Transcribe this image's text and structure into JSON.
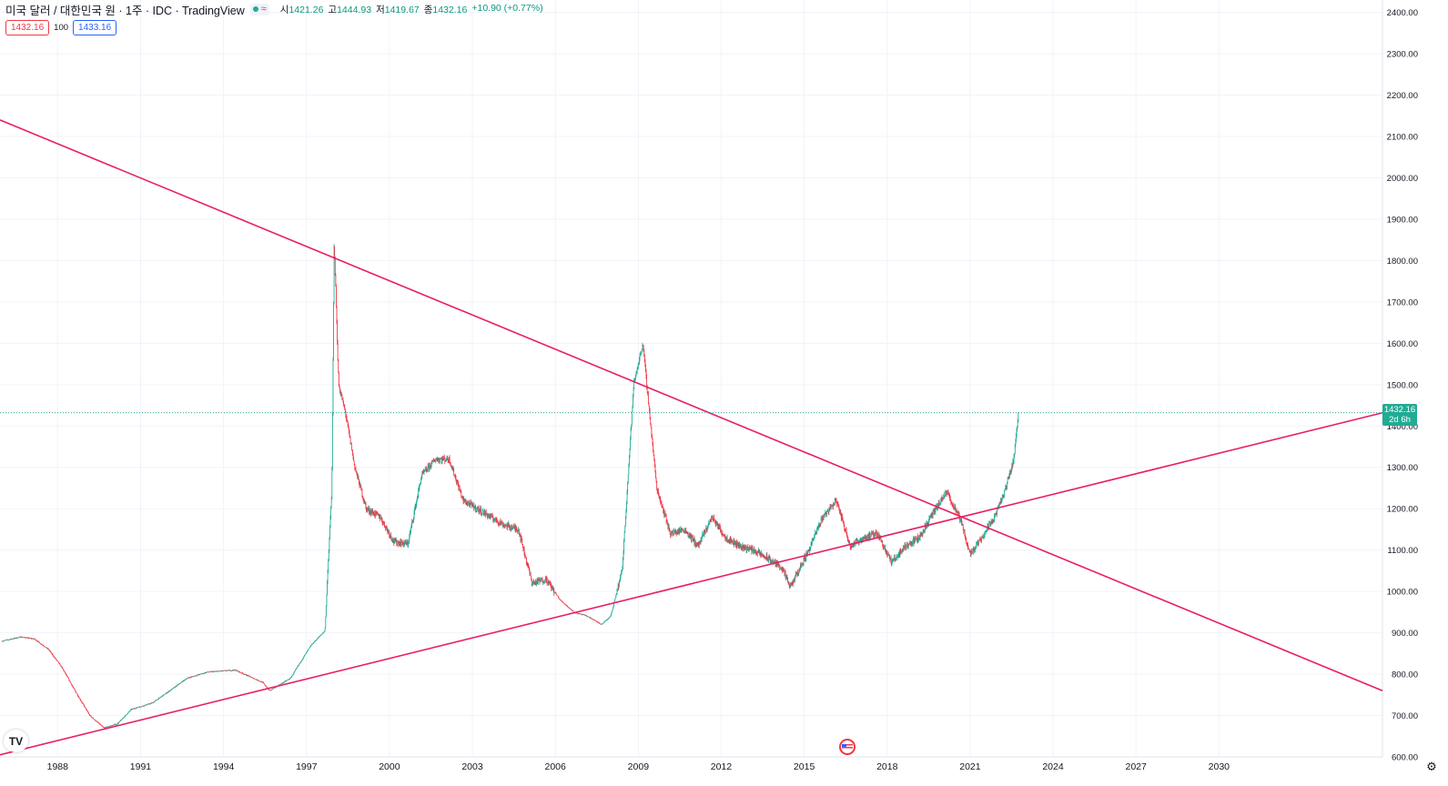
{
  "header": {
    "symbol_title": "미국 달러 / 대한민국 원 · 1주 · IDC · TradingView",
    "status_icon": "approx-wave-icon",
    "ohlc": [
      {
        "label": "시",
        "value": "1421.26"
      },
      {
        "label": "고",
        "value": "1444.93"
      },
      {
        "label": "저",
        "value": "1419.67"
      },
      {
        "label": "종",
        "value": "1432.16"
      },
      {
        "label": "",
        "value": "+10.90 (+0.77%)"
      }
    ],
    "bid": "1432.16",
    "spread": "100",
    "ask": "1433.16"
  },
  "price_tag": {
    "price": "1432.16",
    "countdown": "2d 6h"
  },
  "colors": {
    "up": "#22ab94",
    "down": "#f23645",
    "trendline": "#e91e63",
    "grid": "#f0f3fa",
    "axis_text": "#131722"
  },
  "chart_data": {
    "type": "candlestick",
    "x_axis_type": "date",
    "xlim": [
      "1985-12-01",
      "2035-12-01"
    ],
    "ylim": [
      600,
      2430
    ],
    "x_tick_labels": [
      "1988",
      "1991",
      "1994",
      "1997",
      "2000",
      "2003",
      "2006",
      "2009",
      "2012",
      "2015",
      "2018",
      "2021",
      "2024",
      "2027",
      "2030"
    ],
    "y_tick_labels": [
      "600.00",
      "700.00",
      "800.00",
      "900.00",
      "1000.00",
      "1100.00",
      "1200.00",
      "1300.00",
      "1400.00",
      "1500.00",
      "1600.00",
      "1700.00",
      "1800.00",
      "1900.00",
      "2000.00",
      "2100.00",
      "2200.00",
      "2300.00",
      "2400.00"
    ],
    "last_price": 1432.16,
    "grid": true,
    "price_path": [
      [
        "1986-01-01",
        880
      ],
      [
        "1986-09-01",
        890
      ],
      [
        "1987-03-01",
        885
      ],
      [
        "1987-09-01",
        860
      ],
      [
        "1988-03-01",
        815
      ],
      [
        "1988-09-01",
        755
      ],
      [
        "1989-03-01",
        700
      ],
      [
        "1989-09-01",
        670
      ],
      [
        "1990-03-01",
        680
      ],
      [
        "1990-09-01",
        715
      ],
      [
        "1991-06-01",
        730
      ],
      [
        "1992-03-01",
        765
      ],
      [
        "1992-09-01",
        790
      ],
      [
        "1993-06-01",
        805
      ],
      [
        "1994-06-01",
        810
      ],
      [
        "1995-06-01",
        780
      ],
      [
        "1995-09-01",
        760
      ],
      [
        "1996-06-01",
        790
      ],
      [
        "1997-03-01",
        870
      ],
      [
        "1997-09-01",
        905
      ],
      [
        "1997-12-01",
        1250
      ],
      [
        "1998-01-01",
        1850
      ],
      [
        "1998-03-01",
        1500
      ],
      [
        "1998-06-01",
        1430
      ],
      [
        "1998-10-01",
        1300
      ],
      [
        "1999-03-01",
        1200
      ],
      [
        "1999-09-01",
        1180
      ],
      [
        "2000-03-01",
        1120
      ],
      [
        "2000-09-01",
        1115
      ],
      [
        "2001-03-01",
        1280
      ],
      [
        "2001-09-01",
        1320
      ],
      [
        "2002-03-01",
        1320
      ],
      [
        "2002-09-01",
        1220
      ],
      [
        "2003-03-01",
        1200
      ],
      [
        "2003-09-01",
        1180
      ],
      [
        "2004-03-01",
        1160
      ],
      [
        "2004-09-01",
        1150
      ],
      [
        "2005-03-01",
        1020
      ],
      [
        "2005-09-01",
        1030
      ],
      [
        "2006-03-01",
        980
      ],
      [
        "2006-09-01",
        950
      ],
      [
        "2007-03-01",
        940
      ],
      [
        "2007-09-01",
        920
      ],
      [
        "2008-01-01",
        940
      ],
      [
        "2008-06-01",
        1050
      ],
      [
        "2008-11-01",
        1500
      ],
      [
        "2009-03-01",
        1600
      ],
      [
        "2009-09-01",
        1250
      ],
      [
        "2010-03-01",
        1140
      ],
      [
        "2010-09-01",
        1150
      ],
      [
        "2011-03-01",
        1110
      ],
      [
        "2011-09-01",
        1180
      ],
      [
        "2012-03-01",
        1130
      ],
      [
        "2012-09-01",
        1110
      ],
      [
        "2013-03-01",
        1100
      ],
      [
        "2013-09-01",
        1080
      ],
      [
        "2014-03-01",
        1060
      ],
      [
        "2014-07-01",
        1010
      ],
      [
        "2015-03-01",
        1100
      ],
      [
        "2015-09-01",
        1180
      ],
      [
        "2016-03-01",
        1220
      ],
      [
        "2016-09-01",
        1110
      ],
      [
        "2017-03-01",
        1130
      ],
      [
        "2017-09-01",
        1140
      ],
      [
        "2018-03-01",
        1070
      ],
      [
        "2018-09-01",
        1110
      ],
      [
        "2019-03-01",
        1130
      ],
      [
        "2019-09-01",
        1190
      ],
      [
        "2020-03-01",
        1240
      ],
      [
        "2020-09-01",
        1170
      ],
      [
        "2021-01-01",
        1090
      ],
      [
        "2021-06-01",
        1130
      ],
      [
        "2021-12-01",
        1185
      ],
      [
        "2022-04-01",
        1240
      ],
      [
        "2022-08-01",
        1320
      ],
      [
        "2022-10-01",
        1432
      ]
    ],
    "trendlines": [
      {
        "from": [
          "1985-12-01",
          2140
        ],
        "to": [
          "2035-12-01",
          760
        ]
      },
      {
        "from": [
          "1985-12-01",
          605
        ],
        "to": [
          "2035-12-01",
          1432
        ]
      }
    ]
  }
}
